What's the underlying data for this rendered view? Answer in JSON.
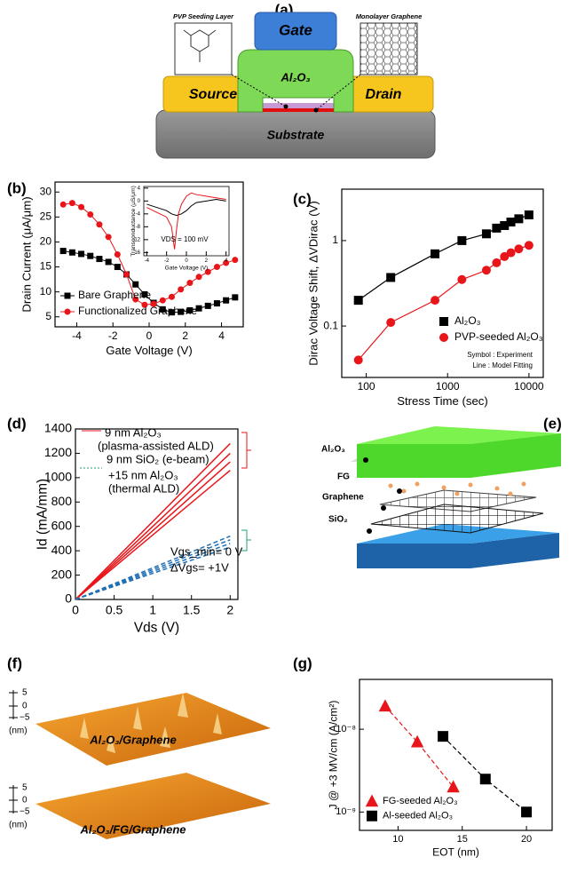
{
  "panel_labels": [
    "(a)",
    "(b)",
    "(c)",
    "(d)",
    "(e)",
    "(f)",
    "(g)"
  ],
  "diagram_a": {
    "gate": "Gate",
    "oxide": "Al₂O₃",
    "source": "Source",
    "drain": "Drain",
    "substrate": "Substrate",
    "seeding_layer": "PVP Seeding Layer",
    "graphene": "Monolayer Graphene"
  },
  "diagram_e": {
    "labels": [
      "Al₂O₃",
      "FG",
      "Graphene",
      "SiO₂"
    ]
  },
  "image_f": {
    "scale_ticks": [
      "5",
      "0",
      "−5"
    ],
    "scale_unit": "(nm)",
    "captions": [
      "Al₂O₃/Graphene",
      "Al₂O₃/FG/Graphene"
    ]
  },
  "chart_data": [
    {
      "type": "line",
      "xlabel": "Gate Voltage (V)",
      "ylabel": "Drain Current (μA/μm)",
      "xlim": [
        -5.2,
        5.2
      ],
      "xticks": [
        -4,
        -2,
        0,
        2,
        4
      ],
      "ylim": [
        3,
        32
      ],
      "yticks": [
        5,
        10,
        15,
        20,
        25,
        30
      ],
      "legend": "lower left",
      "series": [
        {
          "name": "Bare Graphene",
          "color": "#000000",
          "marker": "square",
          "line": "solid",
          "x": [
            -4.75,
            -4.25,
            -3.75,
            -3.25,
            -2.75,
            -2.25,
            -1.75,
            -1.25,
            -0.75,
            -0.25,
            0.25,
            0.75,
            1.25,
            1.75,
            2.25,
            2.75,
            3.25,
            3.75,
            4.25,
            4.75
          ],
          "values": [
            18.2,
            17.9,
            17.6,
            17.2,
            16.6,
            16,
            15,
            13.5,
            11.5,
            9.5,
            7.8,
            6.5,
            5.9,
            6,
            6.3,
            6.7,
            7.2,
            7.7,
            8.3,
            8.9
          ]
        },
        {
          "name": "Functionalized Graphene",
          "color": "#e8161b",
          "marker": "circle",
          "line": "solid",
          "x": [
            -4.75,
            -4.25,
            -3.75,
            -3.25,
            -2.75,
            -2.25,
            -1.75,
            -1.25,
            -0.75,
            -0.25,
            0.25,
            0.75,
            1.25,
            1.75,
            2.25,
            2.75,
            3.25,
            3.75,
            4.25,
            4.75
          ],
          "values": [
            27.5,
            27.8,
            27,
            25.5,
            23.5,
            21,
            17.5,
            13.5,
            8.5,
            7.4,
            7.6,
            8.3,
            9,
            10.5,
            11.8,
            13,
            14,
            15,
            15.8,
            16.4
          ]
        }
      ]
    },
    {
      "type": "line",
      "xlabel": "Gate Voltage (V)",
      "ylabel": "Transconductance (μS/μm)",
      "annotation": "VDS = 100 mV",
      "xlim": [
        -4.3,
        4.3
      ],
      "xticks": [
        -4,
        -2,
        0,
        2,
        4
      ],
      "ylim": [
        -17,
        4.5
      ],
      "yticks": [
        -16,
        -12,
        -8,
        -4,
        0,
        4
      ],
      "series": [
        {
          "color": "#000000",
          "marker": "none",
          "line": "solid",
          "x": [
            -4,
            -3,
            -2,
            -1.5,
            -1,
            -0.5,
            0,
            0.5,
            1,
            2,
            3,
            4
          ],
          "values": [
            -1,
            -2,
            -3,
            -4,
            -4.5,
            -4,
            -3,
            -1.5,
            -0.5,
            0,
            0.5,
            0
          ]
        },
        {
          "color": "#e8161b",
          "marker": "none",
          "line": "solid",
          "x": [
            -4,
            -3,
            -2,
            -1.5,
            -1.2,
            -1,
            -0.8,
            -0.5,
            0,
            0.5,
            1,
            2,
            3,
            4
          ],
          "values": [
            -2,
            -3.5,
            -5,
            -8,
            -15,
            -9,
            -4,
            -1,
            1.5,
            2.5,
            2,
            1.5,
            1,
            0.5
          ]
        }
      ]
    },
    {
      "type": "scatter",
      "xlabel": "Stress Time (sec)",
      "ylabel": "Dirac Voltage Shift, ΔVDirac (V)",
      "xlog": true,
      "ylog": true,
      "xlim": [
        50,
        15000
      ],
      "xticks": [
        100,
        1000,
        10000
      ],
      "ylim": [
        0.025,
        4
      ],
      "yticks": [
        0.1,
        1
      ],
      "legend": "lower right",
      "notes": [
        "Symbol : Experiment",
        "Line : Model Fitting"
      ],
      "series": [
        {
          "name": "Al₂O₃",
          "color": "#000000",
          "marker": "square",
          "line": "solid",
          "x": [
            80,
            200,
            700,
            1500,
            3000,
            4000,
            5000,
            6000,
            7500,
            10000
          ],
          "values": [
            0.2,
            0.37,
            0.7,
            1.0,
            1.2,
            1.4,
            1.5,
            1.65,
            1.8,
            2.0
          ]
        },
        {
          "name": "PVP-seeded Al₂O₃",
          "color": "#e8161b",
          "marker": "circle",
          "line": "solid",
          "x": [
            80,
            200,
            700,
            1500,
            3000,
            4000,
            5000,
            6000,
            7500,
            10000
          ],
          "values": [
            0.04,
            0.11,
            0.2,
            0.35,
            0.45,
            0.55,
            0.65,
            0.72,
            0.8,
            0.88
          ]
        }
      ]
    },
    {
      "type": "line",
      "xlabel": "Vds (V)",
      "ylabel": "Id (mA/mm)",
      "xlim": [
        0,
        2.1
      ],
      "xticks": [
        0,
        0.5,
        1,
        1.5,
        2
      ],
      "ylim": [
        0,
        1400
      ],
      "yticks": [
        0,
        200,
        400,
        600,
        800,
        1000,
        1200,
        1400
      ],
      "annotations": [
        "9 nm Al₂O₃",
        "(plasma-assisted ALD)",
        "9 nm SiO₂ (e-beam)",
        "+15 nm Al₂O₃",
        "(thermal ALD)",
        "Vgs_min= 0 V",
        "ΔVgs= +1V"
      ],
      "series": [
        {
          "color": "#e8161b",
          "marker": "none",
          "line": "solid",
          "x": [
            0,
            2
          ],
          "values": [
            0,
            1280
          ]
        },
        {
          "color": "#e8161b",
          "marker": "none",
          "line": "solid",
          "x": [
            0,
            2
          ],
          "values": [
            0,
            1200
          ]
        },
        {
          "color": "#e8161b",
          "marker": "none",
          "line": "solid",
          "x": [
            0,
            2
          ],
          "values": [
            0,
            1130
          ]
        },
        {
          "color": "#e8161b",
          "marker": "none",
          "line": "solid",
          "x": [
            0,
            2
          ],
          "values": [
            0,
            1060
          ]
        },
        {
          "color": "#1f6fb5",
          "marker": "none",
          "line": "dashed",
          "x": [
            0,
            2
          ],
          "values": [
            0,
            520
          ]
        },
        {
          "color": "#1f6fb5",
          "marker": "none",
          "line": "dashed",
          "x": [
            0,
            2
          ],
          "values": [
            0,
            490
          ]
        },
        {
          "color": "#1f6fb5",
          "marker": "none",
          "line": "dashed",
          "x": [
            0,
            2
          ],
          "values": [
            0,
            460
          ]
        },
        {
          "color": "#1f6fb5",
          "marker": "none",
          "line": "dashed",
          "x": [
            0,
            2
          ],
          "values": [
            0,
            430
          ]
        }
      ]
    },
    {
      "type": "scatter",
      "xlabel": "EOT (nm)",
      "ylabel": "J @ +3 MV/cm (A/cm²)",
      "ylog": true,
      "xlim": [
        7,
        22
      ],
      "xticks": [
        10,
        15,
        20
      ],
      "ylim": [
        6e-10,
        4e-08
      ],
      "yticks": [
        {
          "value": 1e-09,
          "label": "10⁻⁹"
        },
        {
          "value": 1e-08,
          "label": "10⁻⁸"
        }
      ],
      "legend": "lower left",
      "series": [
        {
          "name": "FG-seeded Al₂O₃",
          "color": "#e8161b",
          "marker": "triangle",
          "line": "dashed",
          "x": [
            9,
            11.5,
            14.3
          ],
          "values": [
            1.9e-08,
            7e-09,
            2e-09
          ]
        },
        {
          "name": "Al-seeded Al₂O₃",
          "color": "#000000",
          "marker": "square",
          "line": "dashed",
          "x": [
            13.5,
            16.8,
            20
          ],
          "values": [
            8.2e-09,
            2.5e-09,
            1e-09
          ]
        }
      ]
    }
  ]
}
